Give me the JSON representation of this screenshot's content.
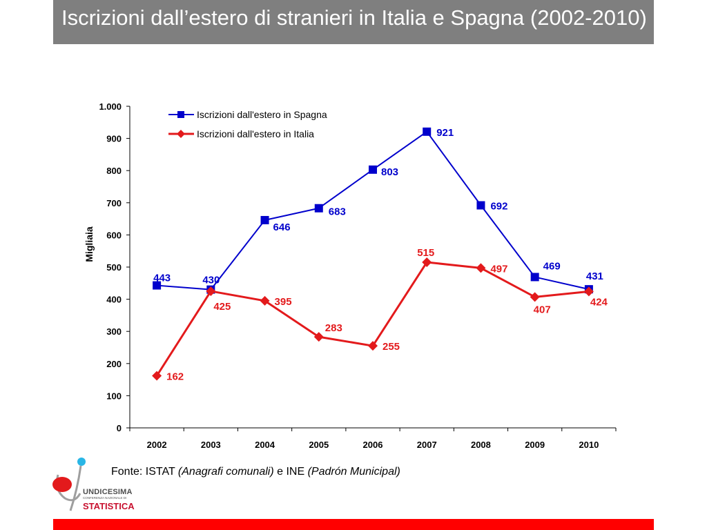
{
  "slide": {
    "title": "Iscrizioni dall’estero di stranieri in Italia e Spagna (2002-2010)",
    "source_prefix": "Fonte: ISTAT ",
    "source_italic_1": "(Anagrafi comunali)",
    "source_mid": " e INE ",
    "source_italic_2": "(Padrón Municipal)"
  },
  "logo": {
    "line1": "UNDICESIMA",
    "line2": "CONFERENZA NAZIONALE DI",
    "line3": "STATISTICA"
  },
  "chart_data": {
    "type": "line",
    "categories": [
      "2002",
      "2003",
      "2004",
      "2005",
      "2006",
      "2007",
      "2008",
      "2009",
      "2010"
    ],
    "ylabel": "Migliaia",
    "ylim": [
      0,
      1000
    ],
    "y_ticks": [
      0,
      100,
      200,
      300,
      400,
      500,
      600,
      700,
      800,
      900,
      1000
    ],
    "y_tick_labels": [
      "0",
      "100",
      "200",
      "300",
      "400",
      "500",
      "600",
      "700",
      "800",
      "900",
      "1.000"
    ],
    "grid": false,
    "legend_position": "top-left",
    "series": [
      {
        "name": "Iscrizioni dall'estero in Spagna",
        "color": "#0000cc",
        "marker": "square",
        "values": [
          443,
          430,
          646,
          683,
          803,
          921,
          692,
          469,
          431
        ],
        "labels": [
          "443",
          "430",
          "646",
          "683",
          "803",
          "921",
          "692",
          "469",
          "431"
        ]
      },
      {
        "name": "Iscrizioni dall'estero in Italia",
        "color": "#e31a1c",
        "marker": "diamond",
        "values": [
          162,
          425,
          395,
          283,
          255,
          515,
          497,
          407,
          424
        ],
        "labels": [
          "162",
          "425",
          "395",
          "283",
          "255",
          "515",
          "497",
          "407",
          "424"
        ]
      }
    ]
  }
}
